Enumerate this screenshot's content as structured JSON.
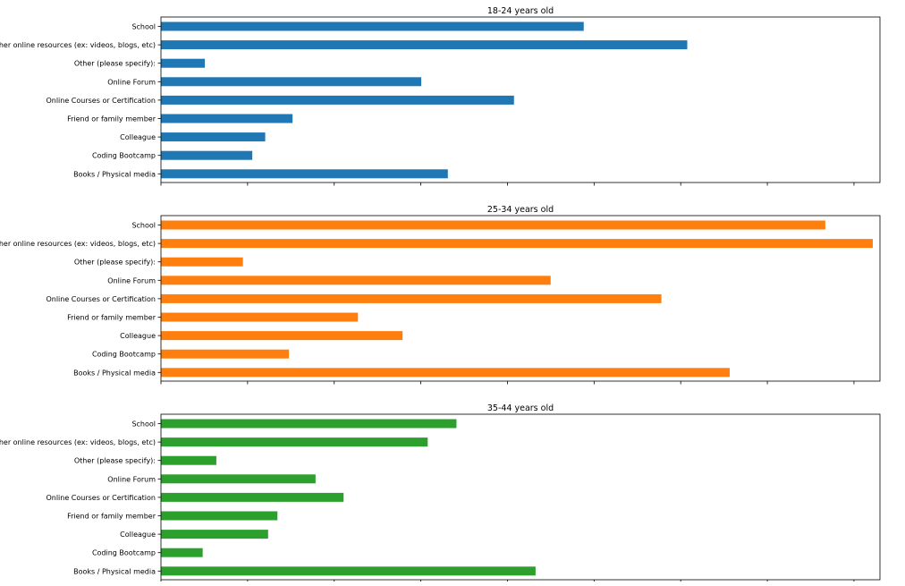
{
  "chart_data": [
    {
      "type": "bar",
      "orientation": "horizontal",
      "title": "18-24 years old",
      "color": "#1f77b4",
      "xlim": [
        0,
        1
      ],
      "categories": [
        "School",
        "Other online resources (ex: videos, blogs, etc)",
        "Other (please specify):",
        "Online Forum",
        "Online Courses or Certification",
        "Friend or family member",
        "Colleague",
        "Coding Bootcamp",
        "Books / Physical media"
      ],
      "values": [
        0.588,
        0.732,
        0.061,
        0.362,
        0.491,
        0.183,
        0.145,
        0.127,
        0.399
      ]
    },
    {
      "type": "bar",
      "orientation": "horizontal",
      "title": "25-34 years old",
      "color": "#ff7f0e",
      "xlim": [
        0,
        1
      ],
      "categories": [
        "School",
        "Other online resources (ex: videos, blogs, etc)",
        "Other (please specify):",
        "Online Forum",
        "Online Courses or Certification",
        "Friend or family member",
        "Colleague",
        "Coding Bootcamp",
        "Books / Physical media"
      ],
      "values": [
        0.924,
        0.99,
        0.114,
        0.542,
        0.696,
        0.274,
        0.336,
        0.178,
        0.791
      ]
    },
    {
      "type": "bar",
      "orientation": "horizontal",
      "title": "35-44 years old",
      "color": "#2ca02c",
      "xlim": [
        0,
        1
      ],
      "categories": [
        "School",
        "Other online resources (ex: videos, blogs, etc)",
        "Other (please specify):",
        "Online Forum",
        "Online Courses or Certification",
        "Friend or family member",
        "Colleague",
        "Coding Bootcamp",
        "Books / Physical media"
      ],
      "values": [
        0.411,
        0.371,
        0.077,
        0.215,
        0.254,
        0.162,
        0.149,
        0.058,
        0.521
      ]
    }
  ]
}
